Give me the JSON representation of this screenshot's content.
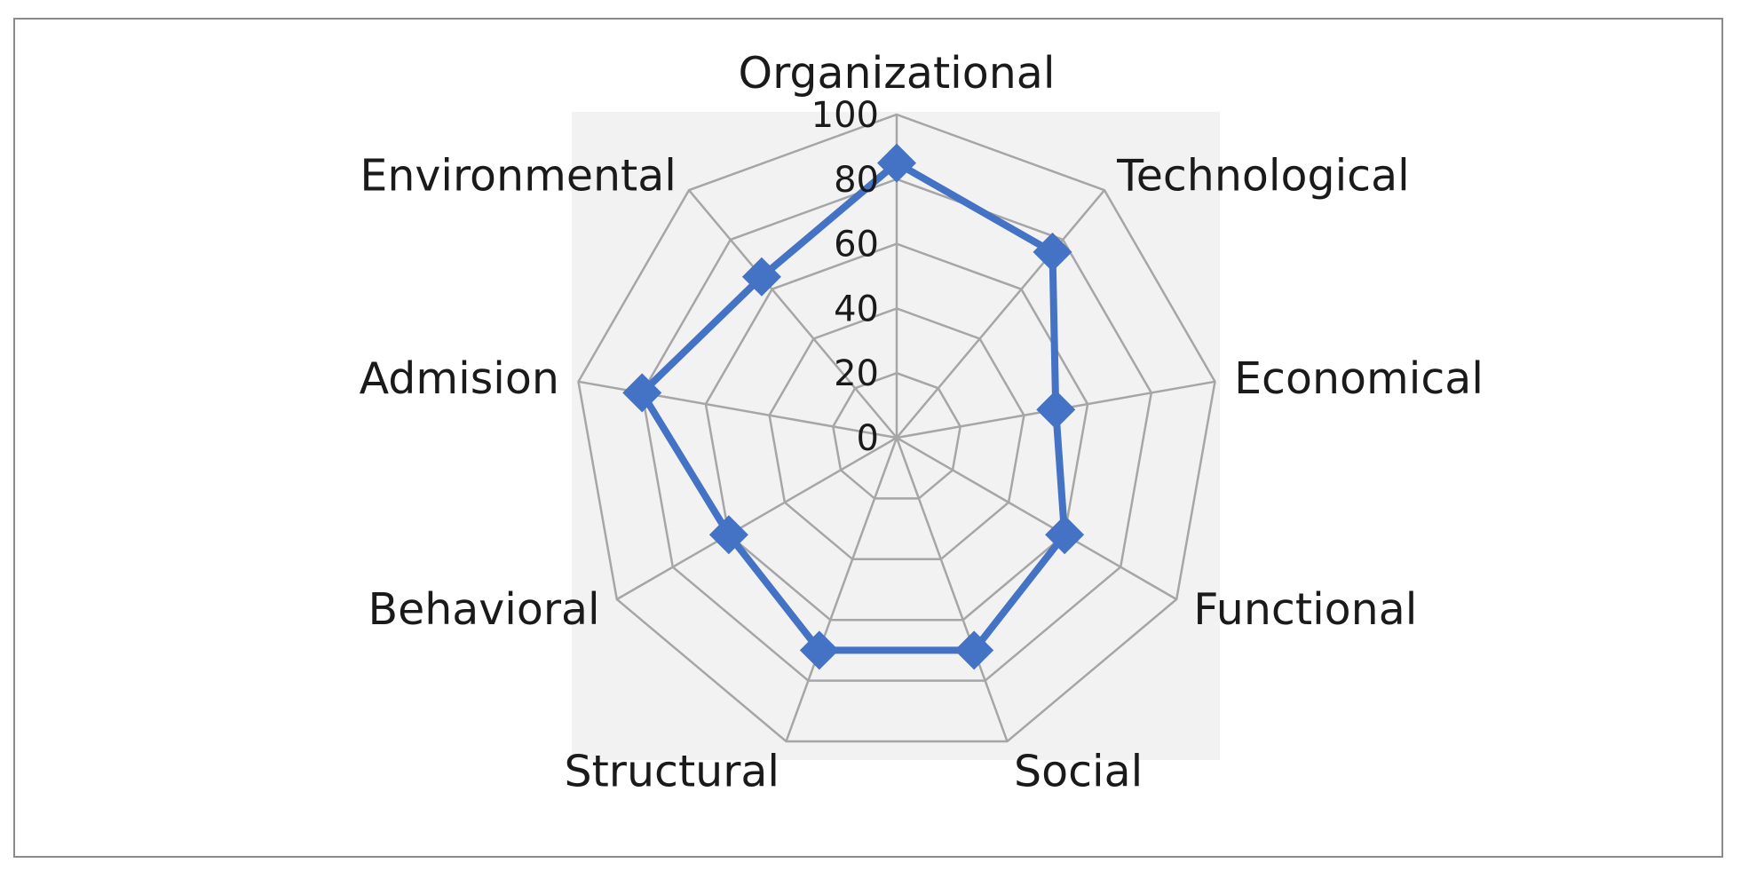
{
  "chart_data": {
    "type": "radar",
    "categories": [
      "Organizational",
      "Technological",
      "Economical",
      "Functional",
      "Social",
      "Structural",
      "Behavioral",
      "Admision",
      "Environmental"
    ],
    "series": [
      {
        "values": [
          85,
          75,
          50,
          60,
          70,
          70,
          60,
          80,
          65
        ]
      }
    ],
    "rlim": [
      0,
      100
    ],
    "ticks": [
      0,
      20,
      40,
      60,
      80,
      100
    ],
    "tick_labels": [
      "0",
      "20",
      "40",
      "60",
      "80",
      "100"
    ],
    "grid": true,
    "legend": "none",
    "colors": {
      "series": "#4472c4",
      "grid": "#a6a6a6",
      "plot_background": "#f2f2f2",
      "frame": "#8a8a8a"
    },
    "marker": "diamond"
  }
}
